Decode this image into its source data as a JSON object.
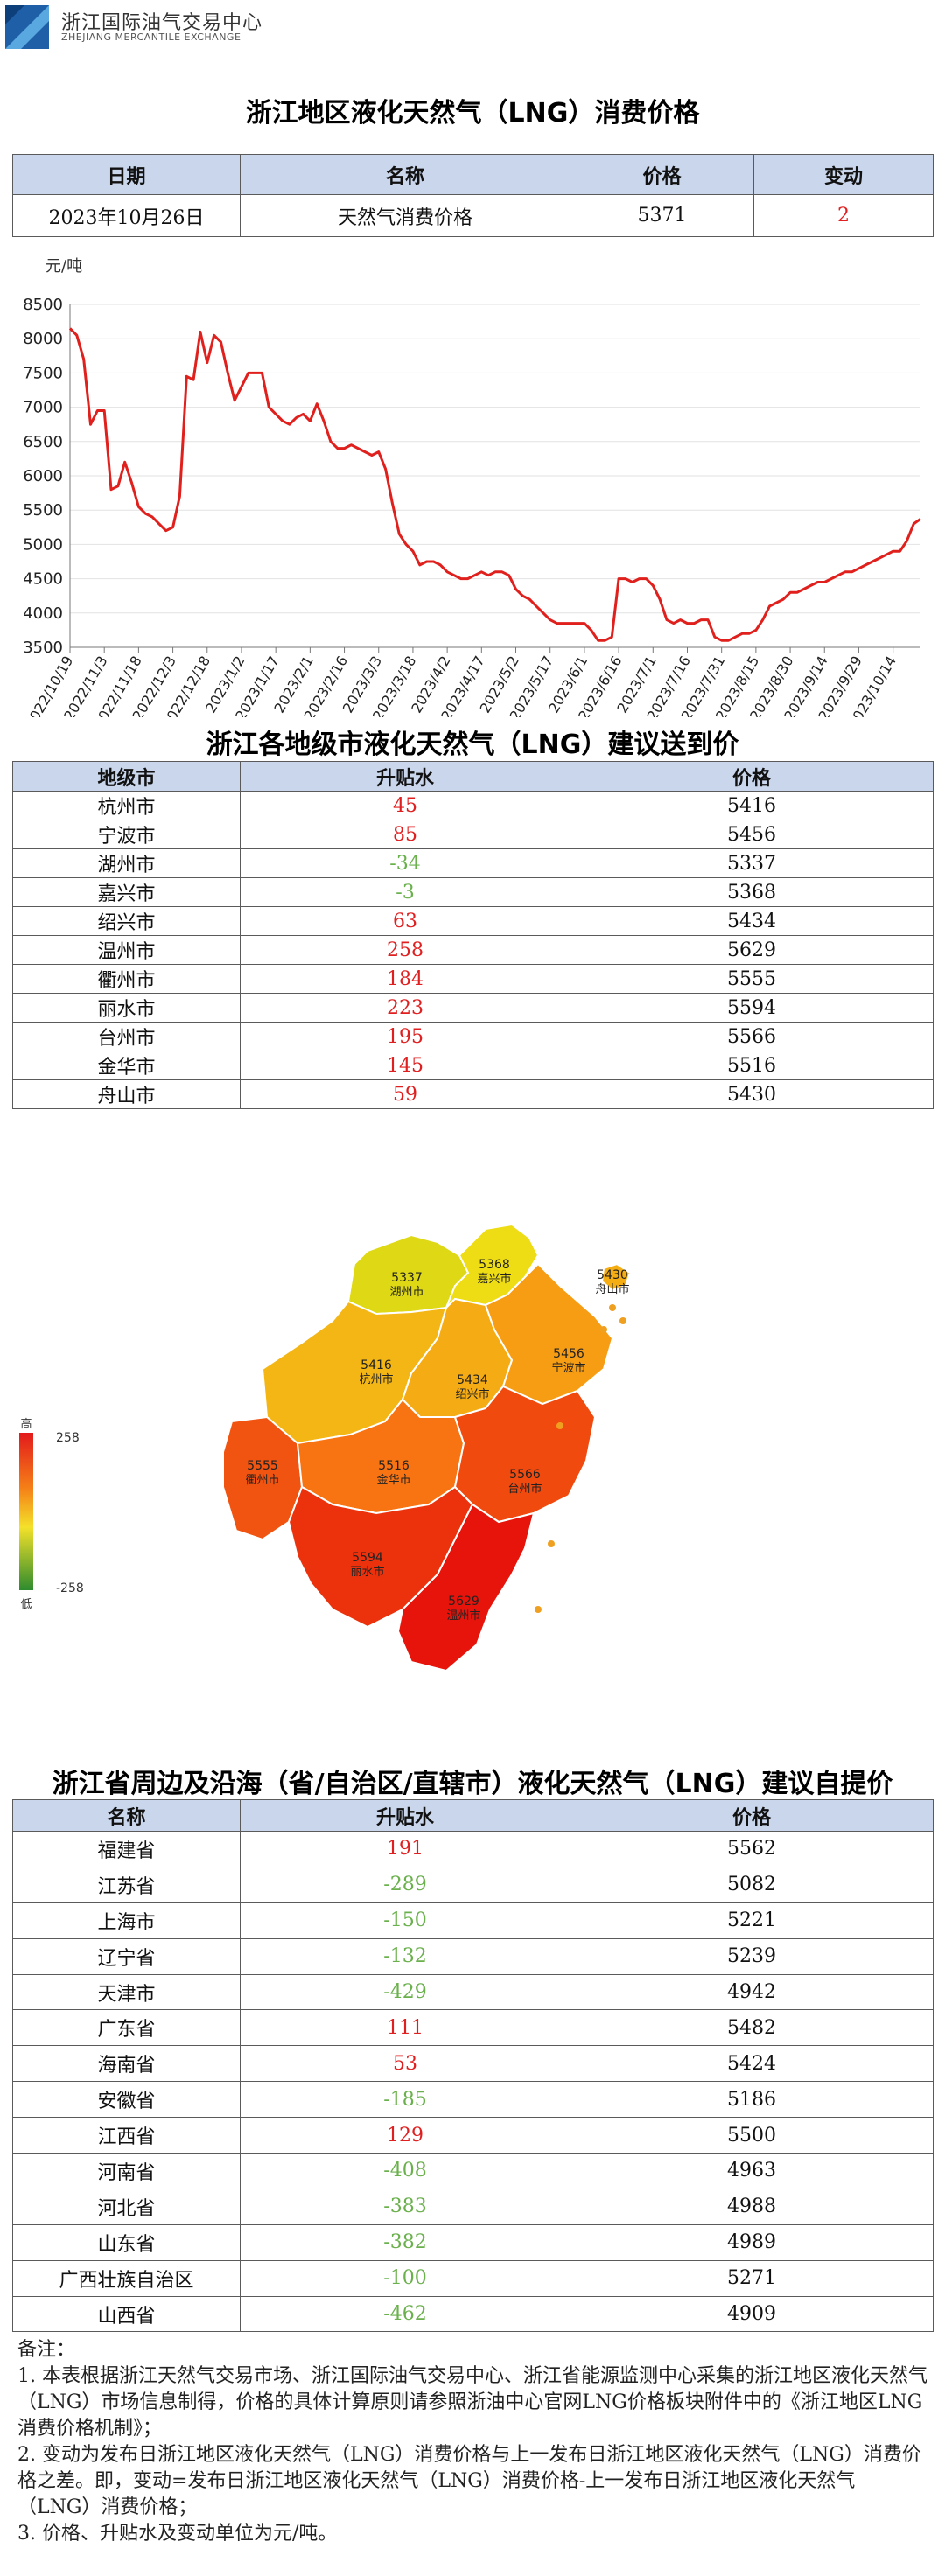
{
  "header": {
    "org_cn": "浙江国际油气交易中心",
    "org_en": "ZHEJIANG MERCANTILE EXCHANGE",
    "logo_icon": "exchange-logo-icon",
    "brand_color": "#1f5fa8"
  },
  "summary": {
    "title": "浙江地区液化天然气（LNG）消费价格",
    "headers": [
      "日期",
      "名称",
      "价格",
      "变动"
    ],
    "row": {
      "date": "2023年10月26日",
      "name": "天然气消费价格",
      "price": "5371",
      "change": "2"
    }
  },
  "chart_data": {
    "type": "line",
    "ylabel": "元/吨",
    "ylim": [
      3500,
      8500
    ],
    "yticks": [
      3500,
      4000,
      4500,
      5000,
      5500,
      6000,
      6500,
      7000,
      7500,
      8000,
      8500
    ],
    "xlim": [
      "2022-10-19",
      "2023-10-26"
    ],
    "xtick_labels": [
      "2022/10/19",
      "2022/11/3",
      "2022/11/18",
      "2022/12/3",
      "2022/12/18",
      "2023/1/2",
      "2023/1/17",
      "2023/2/1",
      "2023/2/16",
      "2023/3/3",
      "2023/3/18",
      "2023/4/2",
      "2023/4/17",
      "2023/5/2",
      "2023/5/17",
      "2023/6/1",
      "2023/6/16",
      "2023/7/1",
      "2023/7/16",
      "2023/7/31",
      "2023/8/15",
      "2023/8/30",
      "2023/9/14",
      "2023/9/29",
      "2023/10/14"
    ],
    "grid": true,
    "line_color": "#e0201d",
    "series": [
      {
        "x": [
          "2022-10-19",
          "2022-10-22",
          "2022-10-25",
          "2022-10-28",
          "2022-10-31",
          "2022-11-03",
          "2022-11-06",
          "2022-11-09",
          "2022-11-12",
          "2022-11-15",
          "2022-11-18",
          "2022-11-21",
          "2022-11-24",
          "2022-11-27",
          "2022-11-30",
          "2022-12-03",
          "2022-12-06",
          "2022-12-09",
          "2022-12-12",
          "2022-12-15",
          "2022-12-18",
          "2022-12-21",
          "2022-12-24",
          "2022-12-27",
          "2022-12-30",
          "2023-01-02",
          "2023-01-05",
          "2023-01-08",
          "2023-01-11",
          "2023-01-14",
          "2023-01-17",
          "2023-01-20",
          "2023-01-23",
          "2023-01-26",
          "2023-01-29",
          "2023-02-01",
          "2023-02-04",
          "2023-02-07",
          "2023-02-10",
          "2023-02-13",
          "2023-02-16",
          "2023-02-19",
          "2023-02-22",
          "2023-02-25",
          "2023-02-28",
          "2023-03-03",
          "2023-03-06",
          "2023-03-09",
          "2023-03-12",
          "2023-03-15",
          "2023-03-18",
          "2023-03-21",
          "2023-03-24",
          "2023-03-27",
          "2023-03-30",
          "2023-04-02",
          "2023-04-05",
          "2023-04-08",
          "2023-04-11",
          "2023-04-14",
          "2023-04-17",
          "2023-04-20",
          "2023-04-23",
          "2023-04-26",
          "2023-04-29",
          "2023-05-02",
          "2023-05-05",
          "2023-05-08",
          "2023-05-11",
          "2023-05-14",
          "2023-05-17",
          "2023-05-20",
          "2023-05-23",
          "2023-05-26",
          "2023-05-29",
          "2023-06-01",
          "2023-06-04",
          "2023-06-07",
          "2023-06-10",
          "2023-06-13",
          "2023-06-16",
          "2023-06-19",
          "2023-06-22",
          "2023-06-25",
          "2023-06-28",
          "2023-07-01",
          "2023-07-04",
          "2023-07-07",
          "2023-07-10",
          "2023-07-13",
          "2023-07-16",
          "2023-07-19",
          "2023-07-22",
          "2023-07-25",
          "2023-07-28",
          "2023-07-31",
          "2023-08-03",
          "2023-08-06",
          "2023-08-09",
          "2023-08-12",
          "2023-08-15",
          "2023-08-18",
          "2023-08-21",
          "2023-08-24",
          "2023-08-27",
          "2023-08-30",
          "2023-09-02",
          "2023-09-05",
          "2023-09-08",
          "2023-09-11",
          "2023-09-14",
          "2023-09-17",
          "2023-09-20",
          "2023-09-23",
          "2023-09-26",
          "2023-09-29",
          "2023-10-02",
          "2023-10-05",
          "2023-10-08",
          "2023-10-11",
          "2023-10-14",
          "2023-10-17",
          "2023-10-20",
          "2023-10-23",
          "2023-10-26"
        ],
        "y": [
          8150,
          8050,
          7700,
          6750,
          6950,
          6950,
          5800,
          5850,
          6200,
          5900,
          5550,
          5450,
          5400,
          5300,
          5200,
          5250,
          5700,
          7450,
          7400,
          8100,
          7650,
          8050,
          7950,
          7500,
          7100,
          7300,
          7500,
          7500,
          7500,
          7000,
          6900,
          6800,
          6750,
          6850,
          6900,
          6800,
          7050,
          6800,
          6500,
          6400,
          6400,
          6450,
          6400,
          6350,
          6300,
          6350,
          6100,
          5600,
          5150,
          5000,
          4900,
          4700,
          4750,
          4750,
          4700,
          4600,
          4550,
          4500,
          4500,
          4550,
          4600,
          4550,
          4600,
          4600,
          4550,
          4350,
          4250,
          4200,
          4100,
          4000,
          3900,
          3850,
          3850,
          3850,
          3850,
          3850,
          3750,
          3600,
          3600,
          3650,
          4500,
          4500,
          4450,
          4500,
          4500,
          4400,
          4200,
          3900,
          3850,
          3900,
          3850,
          3850,
          3900,
          3900,
          3650,
          3600,
          3600,
          3650,
          3700,
          3700,
          3750,
          3900,
          4100,
          4150,
          4200,
          4300,
          4300,
          4350,
          4400,
          4450,
          4450,
          4500,
          4550,
          4600,
          4600,
          4650,
          4700,
          4750,
          4800,
          4850,
          4900,
          4900,
          5050,
          5300,
          5371
        ]
      }
    ]
  },
  "cities": {
    "title": "浙江各地级市液化天然气（LNG）建议送到价",
    "headers": [
      "地级市",
      "升贴水",
      "价格"
    ],
    "rows": [
      {
        "name": "杭州市",
        "diff": "45",
        "price": "5416"
      },
      {
        "name": "宁波市",
        "diff": "85",
        "price": "5456"
      },
      {
        "name": "湖州市",
        "diff": "-34",
        "price": "5337"
      },
      {
        "name": "嘉兴市",
        "diff": "-3",
        "price": "5368"
      },
      {
        "name": "绍兴市",
        "diff": "63",
        "price": "5434"
      },
      {
        "name": "温州市",
        "diff": "258",
        "price": "5629"
      },
      {
        "name": "衢州市",
        "diff": "184",
        "price": "5555"
      },
      {
        "name": "丽水市",
        "diff": "223",
        "price": "5594"
      },
      {
        "name": "台州市",
        "diff": "195",
        "price": "5566"
      },
      {
        "name": "金华市",
        "diff": "145",
        "price": "5516"
      },
      {
        "name": "舟山市",
        "diff": "59",
        "price": "5430"
      }
    ]
  },
  "map": {
    "legend_high": "高",
    "legend_low": "低",
    "legend_max": "258",
    "legend_min": "-258",
    "regions": [
      {
        "name": "湖州市",
        "price": "5337",
        "diff": -34
      },
      {
        "name": "嘉兴市",
        "price": "5368",
        "diff": -3
      },
      {
        "name": "舟山市",
        "price": "5430",
        "diff": 59
      },
      {
        "name": "杭州市",
        "price": "5416",
        "diff": 45
      },
      {
        "name": "绍兴市",
        "price": "5434",
        "diff": 63
      },
      {
        "name": "宁波市",
        "price": "5456",
        "diff": 85
      },
      {
        "name": "衢州市",
        "price": "5555",
        "diff": 184
      },
      {
        "name": "金华市",
        "price": "5516",
        "diff": 145
      },
      {
        "name": "台州市",
        "price": "5566",
        "diff": 195
      },
      {
        "name": "丽水市",
        "price": "5594",
        "diff": 223
      },
      {
        "name": "温州市",
        "price": "5629",
        "diff": 258
      }
    ]
  },
  "provinces": {
    "title": "浙江省周边及沿海（省/自治区/直辖市）液化天然气（LNG）建议自提价",
    "headers": [
      "名称",
      "升贴水",
      "价格"
    ],
    "rows": [
      {
        "name": "福建省",
        "diff": "191",
        "price": "5562"
      },
      {
        "name": "江苏省",
        "diff": "-289",
        "price": "5082"
      },
      {
        "name": "上海市",
        "diff": "-150",
        "price": "5221"
      },
      {
        "name": "辽宁省",
        "diff": "-132",
        "price": "5239"
      },
      {
        "name": "天津市",
        "diff": "-429",
        "price": "4942"
      },
      {
        "name": "广东省",
        "diff": "111",
        "price": "5482"
      },
      {
        "name": "海南省",
        "diff": "53",
        "price": "5424"
      },
      {
        "name": "安徽省",
        "diff": "-185",
        "price": "5186"
      },
      {
        "name": "江西省",
        "diff": "129",
        "price": "5500"
      },
      {
        "name": "河南省",
        "diff": "-408",
        "price": "4963"
      },
      {
        "name": "河北省",
        "diff": "-383",
        "price": "4988"
      },
      {
        "name": "山东省",
        "diff": "-382",
        "price": "4989"
      },
      {
        "name": "广西壮族自治区",
        "diff": "-100",
        "price": "5271"
      },
      {
        "name": "山西省",
        "diff": "-462",
        "price": "4909"
      }
    ]
  },
  "notes": {
    "heading": "备注：",
    "lines": [
      "1. 本表根据浙江天然气交易市场、浙江国际油气交易中心、浙江省能源监测中心采集的浙江地区液化天然气（LNG）市场信息制得，价格的具体计算原则请参照浙油中心官网LNG价格板块附件中的《浙江地区LNG消费价格机制》；",
      "2. 变动为发布日浙江地区液化天然气（LNG）消费价格与上一发布日浙江地区液化天然气（LNG）消费价格之差。即，变动=发布日浙江地区液化天然气（LNG）消费价格-上一发布日浙江地区液化天然气（LNG）消费价格；",
      "3. 价格、升贴水及变动单位为元/吨。"
    ]
  }
}
